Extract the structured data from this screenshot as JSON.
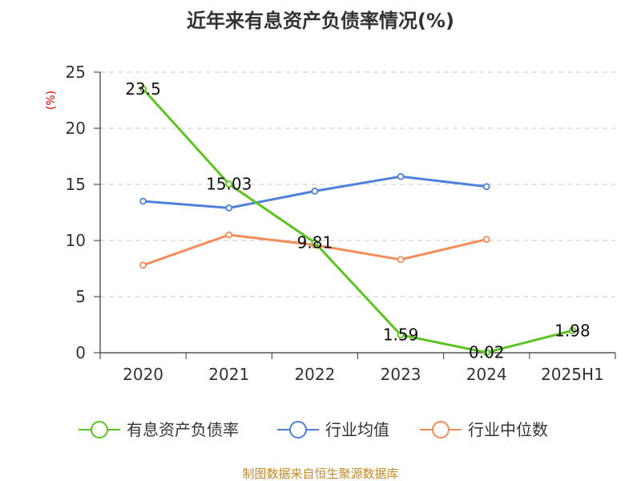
{
  "chart_data": {
    "type": "line",
    "title": "近年来有息资产负债率情况(%)",
    "ylabel": "(%)",
    "xlabel": "",
    "categories": [
      "2020",
      "2021",
      "2022",
      "2023",
      "2024",
      "2025H1"
    ],
    "ylim": [
      0,
      25
    ],
    "yticks": [
      0,
      5,
      10,
      15,
      20,
      25
    ],
    "grid": true,
    "legend_position": "bottom",
    "series": [
      {
        "name": "有息资产负债率",
        "color": "#5cc323",
        "values": [
          23.5,
          15.03,
          9.81,
          1.59,
          0.02,
          1.98
        ],
        "labels": [
          "23.5",
          "15.03",
          "9.81",
          "1.59",
          "0.02",
          "1.98"
        ]
      },
      {
        "name": "行业均值",
        "color": "#4e80dc",
        "values": [
          13.5,
          12.9,
          14.4,
          15.7,
          14.8,
          null
        ]
      },
      {
        "name": "行业中位数",
        "color": "#f58d5b",
        "values": [
          7.8,
          10.5,
          9.6,
          8.3,
          10.1,
          null
        ]
      }
    ]
  },
  "footer": "制图数据来自恒生聚源数据库"
}
